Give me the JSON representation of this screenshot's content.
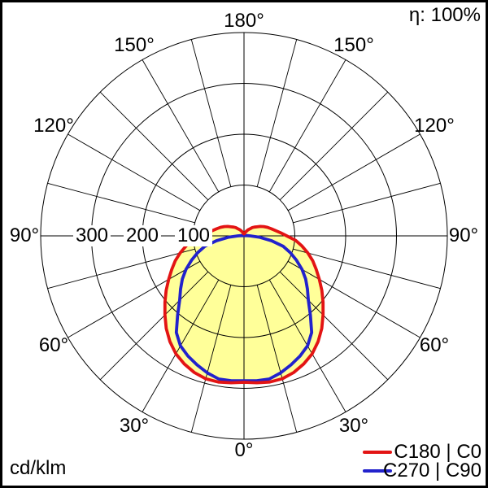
{
  "header": {
    "efficiency_label": "η: 100%"
  },
  "footer": {
    "unit_label": "cd/klm"
  },
  "legend": [
    {
      "id": "c180-c0",
      "label": "C180 | C0",
      "color": "#e31414"
    },
    {
      "id": "c270-c90",
      "label": "C270 | C90",
      "color": "#2222cc"
    }
  ],
  "chart_data": {
    "type": "polar",
    "subtype": "photometric-light-distribution",
    "unit": "cd/klm",
    "efficiency": "η: 100%",
    "fill_color": "#ffff99",
    "grid_color": "#000000",
    "radial_max": 400,
    "radial_rings": [
      100,
      200,
      300,
      400
    ],
    "spoke_step_deg": 15,
    "angle_step_deg": 5,
    "radial_tick_labels": [
      {
        "text": "300",
        "value": 300
      },
      {
        "text": "200",
        "value": 200
      },
      {
        "text": "100",
        "value": 100
      }
    ],
    "angle_labels": [
      {
        "text": "180°",
        "angle": 180,
        "side": "center"
      },
      {
        "text": "150°",
        "angle": 150,
        "side": "left"
      },
      {
        "text": "150°",
        "angle": 150,
        "side": "right"
      },
      {
        "text": "120°",
        "angle": 120,
        "side": "left"
      },
      {
        "text": "120°",
        "angle": 120,
        "side": "right"
      },
      {
        "text": "90°",
        "angle": 90,
        "side": "left"
      },
      {
        "text": "90°",
        "angle": 90,
        "side": "right"
      },
      {
        "text": "60°",
        "angle": 60,
        "side": "left"
      },
      {
        "text": "60°",
        "angle": 60,
        "side": "right"
      },
      {
        "text": "30°",
        "angle": 30,
        "side": "left"
      },
      {
        "text": "30°",
        "angle": 30,
        "side": "right"
      },
      {
        "text": "0°",
        "angle": 0,
        "side": "center"
      }
    ],
    "series": [
      {
        "id": "c180-c0",
        "name": "C180 | C0",
        "color": "#e31414",
        "angles_deg_0_to_180_step_5": true,
        "values": [
          288,
          290,
          292,
          291,
          286,
          278,
          268,
          254,
          238,
          220,
          203,
          187,
          171,
          157,
          144,
          130,
          116,
          102,
          84,
          72,
          62,
          55,
          49,
          43,
          37,
          31,
          27,
          23,
          18,
          15,
          12,
          9,
          7,
          5,
          4,
          4,
          4
        ]
      },
      {
        "id": "c270-c90",
        "name": "C270 | C90",
        "color": "#2222cc",
        "angles_deg_0_to_180_step_5": true,
        "values": [
          285,
          286,
          286,
          279,
          270,
          261,
          250,
          232,
          203,
          179,
          163,
          148,
          132,
          114,
          97,
          80,
          55,
          30,
          12,
          6,
          3,
          2,
          2,
          1,
          1,
          1,
          1,
          1,
          1,
          1,
          1,
          1,
          1,
          1,
          1,
          1,
          1
        ]
      }
    ]
  }
}
